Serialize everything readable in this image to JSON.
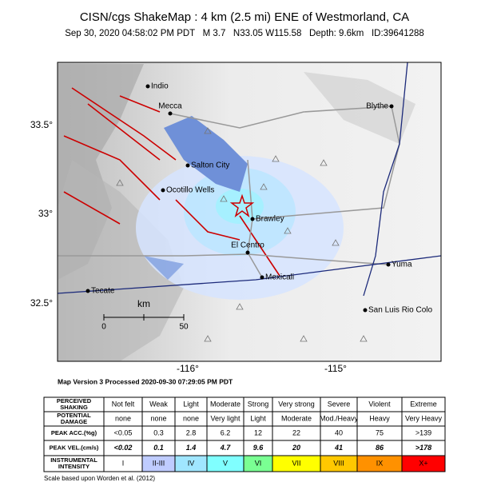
{
  "header": {
    "title": "CISN/cgs ShakeMap : 4 km (2.5 mi) ENE of Westmorland, CA",
    "subtitle": "Sep 30, 2020 04:58:02 PM PDT   M 3.7   N33.05 W115.58   Depth: 9.6km   ID:39641288"
  },
  "map": {
    "lat_labels": [
      "33.5°",
      "33°",
      "32.5°"
    ],
    "lon_labels": [
      "-116°",
      "-115°"
    ],
    "cities": [
      "Indio",
      "Mecca",
      "Blythe",
      "Salton City",
      "Ocotillo Wells",
      "Brawley",
      "El Centro",
      "Mexicali",
      "Yuma",
      "Tecate",
      "San Luis Rio Colo"
    ],
    "scale": {
      "unit": "km",
      "labels": [
        "0",
        "50"
      ]
    },
    "version": "Map Version 3 Processed 2020-09-30 07:29:05 PM PDT"
  },
  "table": {
    "rows": [
      {
        "label": [
          "PERCEIVED",
          "SHAKING"
        ],
        "cells": [
          "Not felt",
          "Weak",
          "Light",
          "Moderate",
          "Strong",
          "Very strong",
          "Severe",
          "Violent",
          "Extreme"
        ]
      },
      {
        "label": [
          "POTENTIAL",
          "DAMAGE"
        ],
        "cells": [
          "none",
          "none",
          "none",
          "Very light",
          "Light",
          "Moderate",
          "Mod./Heavy",
          "Heavy",
          "Very Heavy"
        ]
      },
      {
        "label": [
          "PEAK ACC.(%g)"
        ],
        "cells": [
          "<0.05",
          "0.3",
          "2.8",
          "6.2",
          "12",
          "22",
          "40",
          "75",
          ">139"
        ]
      },
      {
        "label": [
          "PEAK VEL.(cm/s)"
        ],
        "cells": [
          "<0.02",
          "0.1",
          "1.4",
          "4.7",
          "9.6",
          "20",
          "41",
          "86",
          ">178"
        ]
      },
      {
        "label": [
          "INSTRUMENTAL",
          "INTENSITY"
        ],
        "cells": [
          "I",
          "II-III",
          "IV",
          "V",
          "VI",
          "VII",
          "VIII",
          "IX",
          "X+"
        ]
      }
    ],
    "intensity_colors": [
      "#ffffff",
      "#bfccff",
      "#a0e6ff",
      "#80ffff",
      "#7aff93",
      "#ffff00",
      "#ffc800",
      "#ff9100",
      "#ff0000"
    ]
  },
  "footnote": "Scale based upon Worden et al. (2012)"
}
